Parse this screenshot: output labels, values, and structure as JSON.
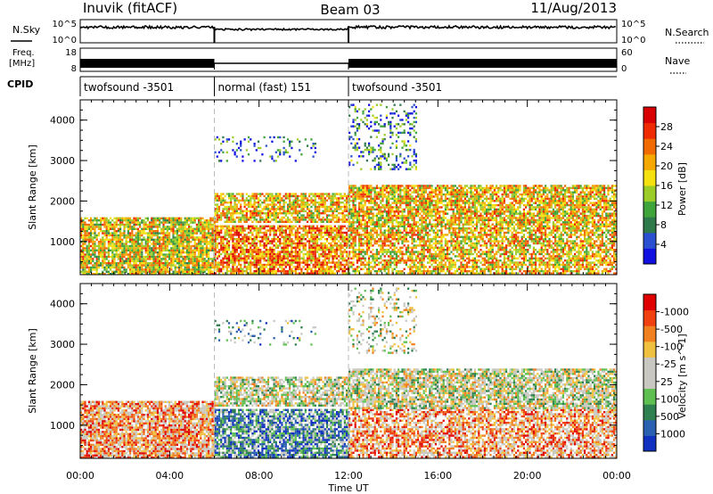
{
  "header": {
    "station": "Inuvik (fitACF)",
    "beam": "Beam 03",
    "date": "11/Aug/2013"
  },
  "strip_labels": {
    "nsky": "N.Sky",
    "freq": "Freq.",
    "freq_unit": "[MHz]",
    "cpid": "CPID",
    "nsearch": "N.Search",
    "nave": "Nave",
    "nsky_ticks": [
      "10^5",
      "10^0"
    ],
    "nsearch_ticks": [
      "10^5",
      "10^0"
    ],
    "freq_ticks": [
      "18",
      "8"
    ],
    "nave_ticks": [
      "60",
      "0"
    ]
  },
  "cpid_segments": [
    {
      "label": "twofsound -3501",
      "start": 0,
      "end": 6
    },
    {
      "label": "normal (fast) 151",
      "start": 6,
      "end": 12
    },
    {
      "label": "twofsound -3501",
      "start": 12,
      "end": 24
    }
  ],
  "chart_data": [
    {
      "type": "heatmap",
      "panel": "power",
      "ylabel": "Slant Range [km]",
      "xlim": [
        0,
        24
      ],
      "ylim": [
        180,
        4500
      ],
      "yticks": [
        1000,
        2000,
        3000,
        4000
      ],
      "colorbar": {
        "label": "Power [dB]",
        "ticks": [
          "4",
          "8",
          "12",
          "16",
          "20",
          "24",
          "28"
        ]
      },
      "color_stops": [
        "#1010e0",
        "#2a4fd0",
        "#2e7a4a",
        "#3fa43a",
        "#9ccc28",
        "#f5e010",
        "#f5a800",
        "#f06a00",
        "#f02a00",
        "#d80000"
      ],
      "regions": [
        {
          "x": [
            0,
            6
          ],
          "y": [
            180,
            1600
          ],
          "density": 0.85,
          "level": 0.55
        },
        {
          "x": [
            6,
            12
          ],
          "y": [
            200,
            1400
          ],
          "density": 0.8,
          "level": 0.7
        },
        {
          "x": [
            6,
            12
          ],
          "y": [
            1500,
            2200
          ],
          "density": 0.75,
          "level": 0.6
        },
        {
          "x": [
            6,
            10.5
          ],
          "y": [
            3000,
            3600
          ],
          "density": 0.15,
          "level": 0.2
        },
        {
          "x": [
            12,
            24
          ],
          "y": [
            200,
            1400
          ],
          "density": 0.7,
          "level": 0.6
        },
        {
          "x": [
            12,
            24
          ],
          "y": [
            1400,
            2400
          ],
          "density": 0.8,
          "level": 0.6
        },
        {
          "x": [
            12,
            15
          ],
          "y": [
            2800,
            4400
          ],
          "density": 0.25,
          "level": 0.25
        }
      ]
    },
    {
      "type": "heatmap",
      "panel": "velocity",
      "xlabel": "Time UT",
      "ylabel": "Slant Range [km]",
      "xlim": [
        0,
        24
      ],
      "ylim": [
        180,
        4500
      ],
      "yticks": [
        1000,
        2000,
        3000,
        4000
      ],
      "xticks": [
        "00:00",
        "04:00",
        "08:00",
        "12:00",
        "16:00",
        "20:00",
        "00:00"
      ],
      "colorbar": {
        "label": "Velocity [m s^-1]",
        "ticks": [
          "1000",
          "500",
          "100",
          "25",
          "-25",
          "-100",
          "-500",
          "-1000"
        ]
      },
      "color_stops": [
        "#1030c0",
        "#2a60b0",
        "#2e8050",
        "#5ec050",
        "#c8c8c0",
        "#c8c8c0",
        "#f0c040",
        "#f08020",
        "#f04010",
        "#e00000"
      ],
      "regions": [
        {
          "x": [
            0,
            6
          ],
          "y": [
            180,
            1600
          ],
          "density": 0.85,
          "level": 0.7
        },
        {
          "x": [
            6,
            12
          ],
          "y": [
            200,
            1400
          ],
          "density": 0.8,
          "level": 0.25
        },
        {
          "x": [
            6,
            12
          ],
          "y": [
            1500,
            2200
          ],
          "density": 0.75,
          "level": 0.5
        },
        {
          "x": [
            6,
            10.5
          ],
          "y": [
            3000,
            3600
          ],
          "density": 0.15,
          "level": 0.35
        },
        {
          "x": [
            12,
            24
          ],
          "y": [
            200,
            1400
          ],
          "density": 0.7,
          "level": 0.7
        },
        {
          "x": [
            12,
            24
          ],
          "y": [
            1400,
            2400
          ],
          "density": 0.8,
          "level": 0.5
        },
        {
          "x": [
            12,
            15
          ],
          "y": [
            2800,
            4400
          ],
          "density": 0.25,
          "level": 0.5
        }
      ]
    }
  ]
}
